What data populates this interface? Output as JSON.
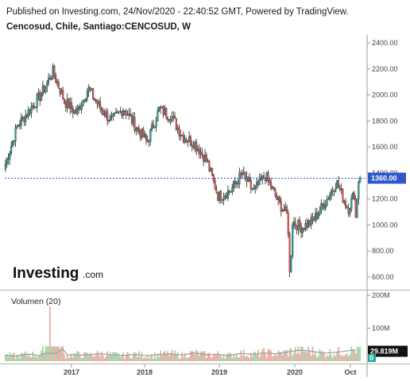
{
  "header": {
    "published": "Published on Investing.com, 24/Nov/2020 - 22:40:52 GMT, Powered by TradingView.",
    "symbol": "Cencosud, Chile, Santiago:CENCOSUD, W"
  },
  "logo": {
    "main": "Investing",
    "domain": ".com"
  },
  "colors": {
    "up": "#26a69a",
    "down": "#ef5350",
    "wick": "#222222",
    "price_line": "#2f57c8",
    "volume_ma": "#9e9e9e"
  },
  "chart_data": [
    {
      "type": "candlestick",
      "title": "",
      "x": [
        "2016-01",
        "2016-03",
        "2016-05",
        "2016-06",
        "2016-08",
        "2016-10",
        "2016-12",
        "2017-02",
        "2017-04",
        "2017-06",
        "2017-08",
        "2017-10",
        "2017-12",
        "2018-02",
        "2018-04",
        "2018-06",
        "2018-08",
        "2018-10",
        "2018-12",
        "2019-02",
        "2019-04",
        "2019-06",
        "2019-08",
        "2019-10",
        "2019-12",
        "2020-02",
        "2020-03",
        "2020-05",
        "2020-07",
        "2020-09",
        "2020-11"
      ],
      "series": [
        {
          "values": [
            1470,
            1760,
            1880,
            2000,
            2180,
            1950,
            1860,
            2050,
            1900,
            1800,
            1900,
            1760,
            1640,
            1890,
            1840,
            1680,
            1630,
            1500,
            1220,
            1260,
            1390,
            1260,
            1380,
            1190,
            1050,
            980,
            1030,
            1170,
            1330,
            1120,
            1360
          ]
        }
      ],
      "x_ticks": [
        "2017",
        "2018",
        "2019",
        "2020",
        "Oct"
      ],
      "y_ticks": [
        "2400.00",
        "2200.00",
        "2000.00",
        "1800.00",
        "1600.00",
        "1400.00",
        "1200.00",
        "1000.00",
        "800.00",
        "600.00"
      ],
      "ylim": [
        600,
        2400
      ],
      "last_price_label": "1360.00",
      "last_price": 1360
    },
    {
      "type": "bar",
      "title": "Volumen (20)",
      "x_ticks": [
        "2017",
        "2018",
        "2019",
        "2020",
        "Oct"
      ],
      "y_ticks": [
        "200M",
        "100M"
      ],
      "values_M": [
        18,
        15,
        22,
        16,
        165,
        17,
        20,
        18,
        23,
        19,
        17,
        21,
        16,
        20,
        22,
        18,
        25,
        19,
        21,
        17,
        24,
        20,
        26,
        22,
        28,
        34,
        30,
        24,
        27,
        31,
        38
      ],
      "ylim_M": [
        0,
        200
      ],
      "last_volume_label": "29.819M",
      "current_bar_label": "0"
    }
  ]
}
